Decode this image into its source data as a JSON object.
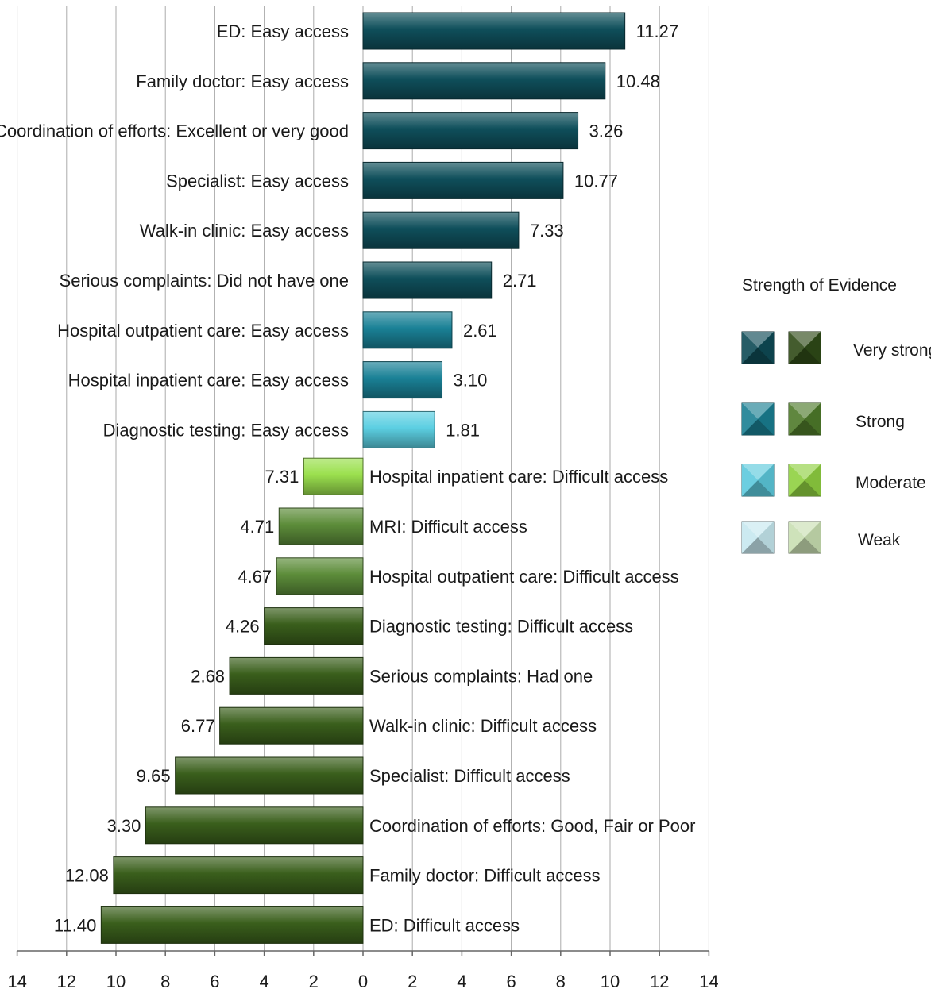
{
  "chart_data": {
    "type": "bar",
    "orientation": "horizontal",
    "title": "",
    "xlabel": "",
    "ylabel": "",
    "xlim": [
      -14,
      14
    ],
    "xticks": [
      -14,
      -12,
      -10,
      -8,
      -6,
      -4,
      -2,
      0,
      2,
      4,
      6,
      8,
      10,
      12,
      14
    ],
    "xtick_labels": [
      "14",
      "12",
      "10",
      "8",
      "6",
      "4",
      "2",
      "0",
      "2",
      "4",
      "6",
      "8",
      "10",
      "12",
      "14"
    ],
    "grid": "vertical",
    "legend_position": "right",
    "bars": [
      {
        "label": "ED: Easy access",
        "length": 10.6,
        "value_label": "11.27",
        "direction": "right",
        "strength": "Very strong"
      },
      {
        "label": "Family doctor: Easy access",
        "length": 9.8,
        "value_label": "10.48",
        "direction": "right",
        "strength": "Very strong"
      },
      {
        "label": "Coordination of efforts: Excellent or very good",
        "length": 8.7,
        "value_label": "3.26",
        "direction": "right",
        "strength": "Very strong"
      },
      {
        "label": "Specialist: Easy access",
        "length": 8.1,
        "value_label": "10.77",
        "direction": "right",
        "strength": "Very strong"
      },
      {
        "label": "Walk-in clinic: Easy access",
        "length": 6.3,
        "value_label": "7.33",
        "direction": "right",
        "strength": "Very strong"
      },
      {
        "label": "Serious complaints: Did not have one",
        "length": 5.2,
        "value_label": "2.71",
        "direction": "right",
        "strength": "Very strong"
      },
      {
        "label": "Hospital outpatient care: Easy access",
        "length": 3.6,
        "value_label": "2.61",
        "direction": "right",
        "strength": "Strong"
      },
      {
        "label": "Hospital inpatient care: Easy access",
        "length": 3.2,
        "value_label": "3.10",
        "direction": "right",
        "strength": "Strong"
      },
      {
        "label": "Diagnostic testing: Easy access",
        "length": 2.9,
        "value_label": "1.81",
        "direction": "right",
        "strength": "Moderate"
      },
      {
        "label": "Hospital inpatient care: Difficult access",
        "length": 2.4,
        "value_label": "7.31",
        "direction": "left",
        "strength": "Moderate"
      },
      {
        "label": "MRI: Difficult access",
        "length": 3.4,
        "value_label": "4.71",
        "direction": "left",
        "strength": "Strong"
      },
      {
        "label": "Hospital outpatient care: Difficult access",
        "length": 3.5,
        "value_label": "4.67",
        "direction": "left",
        "strength": "Strong"
      },
      {
        "label": "Diagnostic testing: Difficult access",
        "length": 4.0,
        "value_label": "4.26",
        "direction": "left",
        "strength": "Very strong"
      },
      {
        "label": "Serious complaints: Had one",
        "length": 5.4,
        "value_label": "2.68",
        "direction": "left",
        "strength": "Very strong"
      },
      {
        "label": "Walk-in clinic: Difficult access",
        "length": 5.8,
        "value_label": "6.77",
        "direction": "left",
        "strength": "Very strong"
      },
      {
        "label": "Specialist: Difficult access",
        "length": 7.6,
        "value_label": "9.65",
        "direction": "left",
        "strength": "Very strong"
      },
      {
        "label": "Coordination of efforts: Good, Fair or Poor",
        "length": 8.8,
        "value_label": "3.30",
        "direction": "left",
        "strength": "Very strong"
      },
      {
        "label": "Family doctor: Difficult access",
        "length": 10.1,
        "value_label": "12.08",
        "direction": "left",
        "strength": "Very strong"
      },
      {
        "label": "ED: Difficult access",
        "length": 10.6,
        "value_label": "11.40",
        "direction": "left",
        "strength": "Very strong"
      }
    ]
  },
  "legend": {
    "title": "Strength of Evidence",
    "items": [
      {
        "label": "Very strong",
        "blue": "#0e4a55",
        "green": "#2f4a17"
      },
      {
        "label": "Strong",
        "blue": "#1a7f92",
        "green": "#4e7a2a"
      },
      {
        "label": "Moderate",
        "blue": "#5cc9dc",
        "green": "#8fd040"
      },
      {
        "label": "Weak",
        "blue": "#c6e8ef",
        "green": "#c9dfb2"
      }
    ]
  },
  "colors": {
    "right": {
      "Very strong": "#0f4f5b",
      "Strong": "#1a8196",
      "Moderate": "#5ccfe2"
    },
    "left": {
      "Very strong": "#3a5f1c",
      "Strong": "#5d8d3a",
      "Moderate": "#9be04e"
    },
    "grid": "#aaaaaa",
    "axis": "#666666"
  }
}
